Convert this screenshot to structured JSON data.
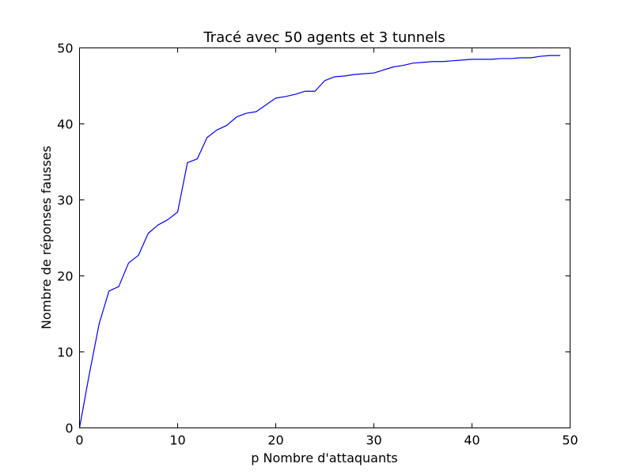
{
  "chart_data": {
    "type": "line",
    "title": "Tracé avec 50 agents et 3 tunnels",
    "xlabel": "p Nombre d'attaquants",
    "ylabel": "Nombre de réponses fausses",
    "xlim": [
      0,
      50
    ],
    "ylim": [
      0,
      50
    ],
    "x_ticks": [
      "0",
      "10",
      "20",
      "30",
      "40",
      "50"
    ],
    "y_ticks": [
      "0",
      "10",
      "20",
      "30",
      "40",
      "50"
    ],
    "grid": false,
    "series": [
      {
        "color": "#0000ff",
        "x": [
          0,
          1,
          2,
          3,
          4,
          5,
          6,
          7,
          8,
          9,
          10,
          11,
          12,
          13,
          14,
          15,
          16,
          17,
          18,
          19,
          20,
          21,
          22,
          23,
          24,
          25,
          26,
          27,
          28,
          29,
          30,
          31,
          32,
          33,
          34,
          35,
          36,
          37,
          38,
          39,
          40,
          41,
          42,
          43,
          44,
          45,
          46,
          47,
          48,
          49
        ],
        "y": [
          0,
          7.1,
          13.7,
          18.0,
          18.6,
          21.7,
          22.7,
          25.6,
          26.7,
          27.4,
          28.4,
          34.9,
          35.4,
          38.2,
          39.2,
          39.8,
          40.9,
          41.4,
          41.6,
          42.5,
          43.4,
          43.6,
          43.9,
          44.3,
          44.3,
          45.7,
          46.2,
          46.3,
          46.5,
          46.6,
          46.7,
          47.1,
          47.5,
          47.7,
          48.0,
          48.1,
          48.2,
          48.2,
          48.3,
          48.4,
          48.5,
          48.5,
          48.5,
          48.6,
          48.6,
          48.7,
          48.7,
          48.9,
          49.0,
          49.0
        ]
      }
    ]
  }
}
